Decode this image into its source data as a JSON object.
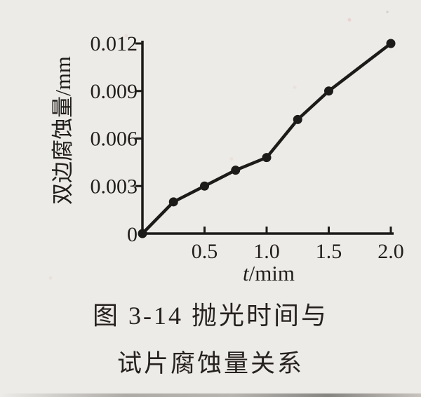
{
  "page": {
    "paper_color": "#edebe7",
    "ink_color": "#1d1b19"
  },
  "figure": {
    "caption_line1": "图 3-14  抛光时间与",
    "caption_line2": "试片腐蚀量关系"
  },
  "chart_data": {
    "type": "line",
    "title": "",
    "xlabel": "t/mim",
    "xlabel_var": "t",
    "xlabel_rest": "/mim",
    "ylabel": "双边腐蚀量/mm",
    "x": [
      0,
      0.25,
      0.5,
      0.75,
      1.0,
      1.25,
      1.5,
      2.0
    ],
    "y": [
      0,
      0.002,
      0.003,
      0.004,
      0.0048,
      0.0072,
      0.009,
      0.012
    ],
    "xlim": [
      0,
      2.0
    ],
    "ylim": [
      0,
      0.012
    ],
    "x_ticks": [
      0.5,
      1.0,
      1.5,
      2.0
    ],
    "x_tick_labels": [
      "0.5",
      "1.0",
      "1.5",
      "2.0"
    ],
    "y_ticks": [
      0,
      0.003,
      0.006,
      0.009,
      0.012
    ],
    "y_tick_labels": [
      "0",
      "0.003",
      "0.006",
      "0.009",
      "0.012"
    ],
    "grid": false,
    "legend": null,
    "marker": "filled-circle",
    "line_color": "#1d1b19"
  }
}
